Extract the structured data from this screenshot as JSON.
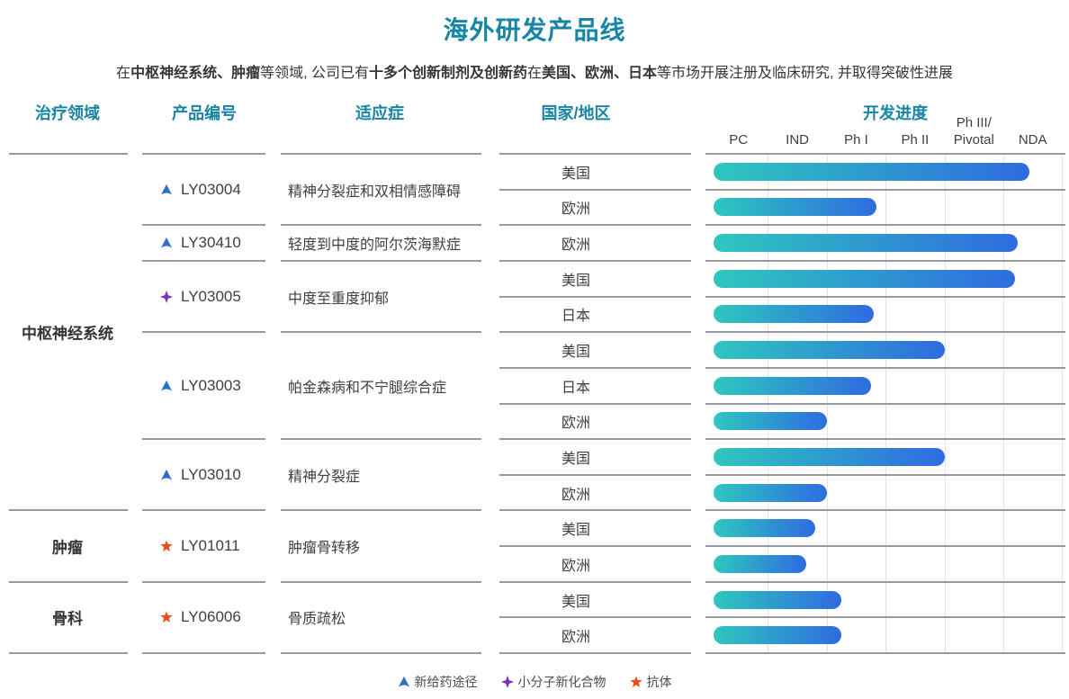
{
  "header": {
    "title": "海外研发产品线",
    "subtitle_segments": [
      {
        "text": "在",
        "bold": false
      },
      {
        "text": "中枢神经系统、肿瘤",
        "bold": true
      },
      {
        "text": "等领域, 公司已有",
        "bold": false
      },
      {
        "text": "十多个创新制剂及创新药",
        "bold": true
      },
      {
        "text": "在",
        "bold": false
      },
      {
        "text": "美国、欧洲、日本",
        "bold": true
      },
      {
        "text": "等市场开展注册及临床研究, 并取得突破性进展",
        "bold": false
      }
    ]
  },
  "table": {
    "columns": [
      "治疗领域",
      "产品编号",
      "适应症",
      "国家/地区",
      "开发进度"
    ],
    "stages": [
      "PC",
      "IND",
      "Ph I",
      "Ph II",
      "Ph III/\nPivotal",
      "NDA"
    ],
    "areas": [
      {
        "name": "中枢神经系统",
        "products": [
          {
            "code": "LY03004",
            "icon": "triangle",
            "indication": "精神分裂症和双相情感障碍",
            "markets": [
              {
                "region": "美国",
                "progress": 5.45
              },
              {
                "region": "欧洲",
                "progress": 2.85
              }
            ]
          },
          {
            "code": "LY30410",
            "icon": "triangle",
            "indication": "轻度到中度的阿尔茨海默症",
            "markets": [
              {
                "region": "欧洲",
                "progress": 5.25
              }
            ]
          },
          {
            "code": "LY03005",
            "icon": "star4",
            "indication": "中度至重度抑郁",
            "markets": [
              {
                "region": "美国",
                "progress": 5.2
              },
              {
                "region": "日本",
                "progress": 2.8
              }
            ]
          },
          {
            "code": "LY03003",
            "icon": "triangle",
            "indication": "帕金森病和不宁腿综合症",
            "markets": [
              {
                "region": "美国",
                "progress": 4.0
              },
              {
                "region": "日本",
                "progress": 2.75
              },
              {
                "region": "欧洲",
                "progress": 2.0
              }
            ]
          },
          {
            "code": "LY03010",
            "icon": "triangle",
            "indication": "精神分裂症",
            "markets": [
              {
                "region": "美国",
                "progress": 4.0
              },
              {
                "region": "欧洲",
                "progress": 2.0
              }
            ]
          }
        ]
      },
      {
        "name": "肿瘤",
        "products": [
          {
            "code": "LY01011",
            "icon": "star5",
            "indication": "肿瘤骨转移",
            "markets": [
              {
                "region": "美国",
                "progress": 1.8
              },
              {
                "region": "欧洲",
                "progress": 1.65
              }
            ]
          }
        ]
      },
      {
        "name": "骨科",
        "products": [
          {
            "code": "LY06006",
            "icon": "star5",
            "indication": "骨质疏松",
            "markets": [
              {
                "region": "美国",
                "progress": 2.25
              },
              {
                "region": "欧洲",
                "progress": 2.25
              }
            ]
          }
        ]
      }
    ]
  },
  "legend": {
    "items": [
      {
        "icon": "triangle",
        "label": "新给药途径"
      },
      {
        "icon": "star4",
        "label": "小分子新化合物"
      },
      {
        "icon": "star5",
        "label": "抗体"
      }
    ]
  },
  "colors": {
    "accent_teal": "#1785A3",
    "bar_gradient_start": "#2EC7BE",
    "bar_gradient_end": "#2F6BE0",
    "icon_new_route": "#2A6FC9",
    "icon_small_molecule": "#7B32B8",
    "icon_antibody": "#E8501C",
    "line_heavy": "#97999D",
    "line_light": "#E2E3E6"
  },
  "chart_data": {
    "type": "bar",
    "orientation": "horizontal",
    "title": "开发进度",
    "stage_axis": [
      "PC",
      "IND",
      "Ph I",
      "Ph II",
      "Ph III/Pivotal",
      "NDA"
    ],
    "value_unit": "completed stage units (1 unit per stage, max 6)",
    "grid": true,
    "rows": [
      {
        "product": "LY03004",
        "region": "美国",
        "value": 5.45,
        "reached": "NDA"
      },
      {
        "product": "LY03004",
        "region": "欧洲",
        "value": 2.85,
        "reached": "Ph I"
      },
      {
        "product": "LY30410",
        "region": "欧洲",
        "value": 5.25,
        "reached": "NDA"
      },
      {
        "product": "LY03005",
        "region": "美国",
        "value": 5.2,
        "reached": "NDA"
      },
      {
        "product": "LY03005",
        "region": "日本",
        "value": 2.8,
        "reached": "Ph I"
      },
      {
        "product": "LY03003",
        "region": "美国",
        "value": 4.0,
        "reached": "Ph II"
      },
      {
        "product": "LY03003",
        "region": "日本",
        "value": 2.75,
        "reached": "Ph I"
      },
      {
        "product": "LY03003",
        "region": "欧洲",
        "value": 2.0,
        "reached": "IND"
      },
      {
        "product": "LY03010",
        "region": "美国",
        "value": 4.0,
        "reached": "Ph II"
      },
      {
        "product": "LY03010",
        "region": "欧洲",
        "value": 2.0,
        "reached": "IND"
      },
      {
        "product": "LY01011",
        "region": "美国",
        "value": 1.8,
        "reached": "IND"
      },
      {
        "product": "LY01011",
        "region": "欧洲",
        "value": 1.65,
        "reached": "IND"
      },
      {
        "product": "LY06006",
        "region": "美国",
        "value": 2.25,
        "reached": "Ph I"
      },
      {
        "product": "LY06006",
        "region": "欧洲",
        "value": 2.25,
        "reached": "Ph I"
      }
    ]
  }
}
